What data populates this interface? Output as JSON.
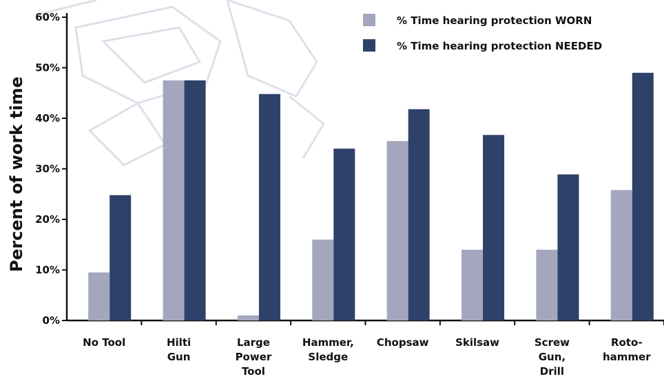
{
  "chart_data": {
    "type": "bar",
    "ylabel": "Percent of work time",
    "ylim": [
      0,
      60
    ],
    "yticks": [
      "0%",
      "10%",
      "20%",
      "30%",
      "40%",
      "50%",
      "60%"
    ],
    "categories": [
      [
        "No Tool"
      ],
      [
        "Hilti",
        "Gun"
      ],
      [
        "Large",
        "Power",
        "Tool"
      ],
      [
        "Hammer,",
        "Sledge"
      ],
      [
        "Chopsaw"
      ],
      [
        "Skilsaw"
      ],
      [
        "Screw",
        "Gun,",
        "Drill"
      ],
      [
        "Roto-",
        "hammer"
      ]
    ],
    "series": [
      {
        "name": "% Time hearing protection WORN",
        "color": "#a4a6bd",
        "values": [
          9.5,
          47.5,
          1,
          16,
          35.5,
          14,
          14,
          25.8
        ]
      },
      {
        "name": "% Time hearing protection NEEDED",
        "color": "#2e4169",
        "values": [
          24.8,
          47.5,
          44.8,
          34,
          41.8,
          36.7,
          28.9,
          49
        ]
      }
    ],
    "legend_position": "top-right",
    "grid": false
  }
}
